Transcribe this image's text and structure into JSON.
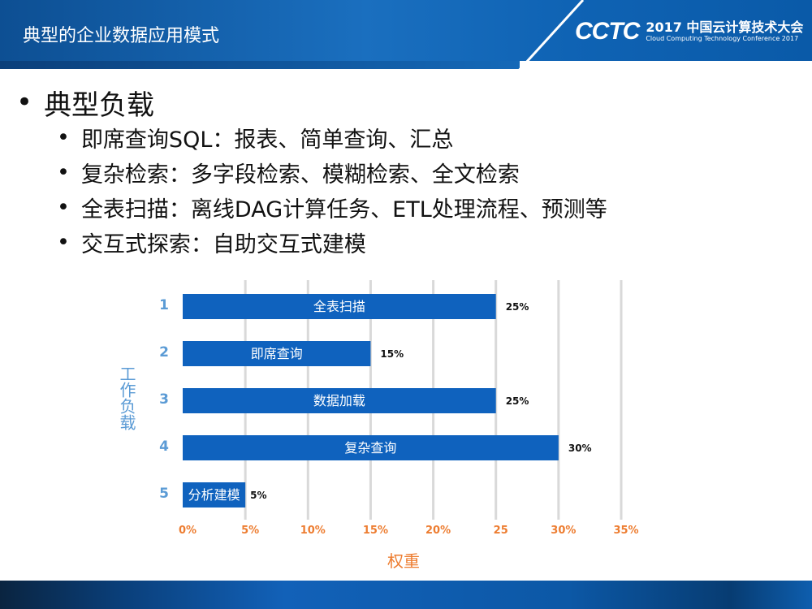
{
  "header": {
    "title": "典型的企业数据应用模式",
    "logo_mark": "CCTC",
    "logo_cn": "2017 中国云计算技术大会",
    "logo_en": "Cloud Computing Technology Conference 2017"
  },
  "bullets": {
    "main": "典型负载",
    "items": [
      "即席查询SQL：报表、简单查询、汇总",
      "复杂检索：多字段检索、模糊检索、全文检索",
      "全表扫描：离线DAG计算任务、ETL处理流程、预测等",
      "交互式探索：自助交互式建模"
    ]
  },
  "chart_data": {
    "type": "bar",
    "orientation": "horizontal",
    "categories": [
      "1",
      "2",
      "3",
      "4",
      "5"
    ],
    "bar_labels": [
      "全表扫描",
      "即席查询",
      "数据加载",
      "复杂查询",
      "分析建模"
    ],
    "values": [
      25,
      15,
      25,
      30,
      5
    ],
    "data_labels": [
      "25%",
      "15%",
      "25%",
      "30%",
      "5%"
    ],
    "xlabel": "权重",
    "ylabel": "工作负载",
    "xticks": [
      "0%",
      "5%",
      "10%",
      "15%",
      "20%",
      "25",
      "30%",
      "35%"
    ],
    "xlim": [
      0,
      35
    ],
    "grid": true,
    "colors": {
      "bar": "#0f62be",
      "tick": "#ed7d31",
      "category": "#5b9bd5"
    }
  }
}
